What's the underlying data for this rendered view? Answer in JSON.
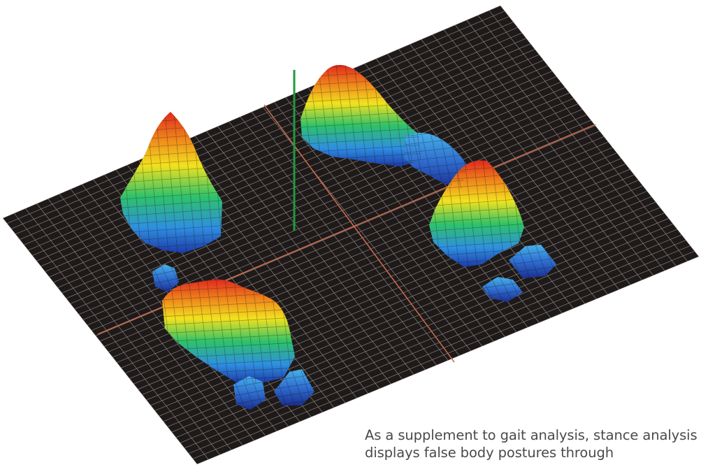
{
  "figure": {
    "subject": "3D pressure distribution surface plot of foot stance on grid plate",
    "colors": {
      "plate": "#1e1a19",
      "grid": "#8a807c",
      "axis": "#c46a4f",
      "marker": "#1f9a3e",
      "scale": [
        "#1d3aa8",
        "#2f8fe0",
        "#2ec26a",
        "#f2e21e",
        "#f08a1c",
        "#e0281e"
      ]
    }
  },
  "caption": {
    "line1": "As a supplement to gait analysis, stance analysis",
    "line2": "displays false body postures through"
  }
}
